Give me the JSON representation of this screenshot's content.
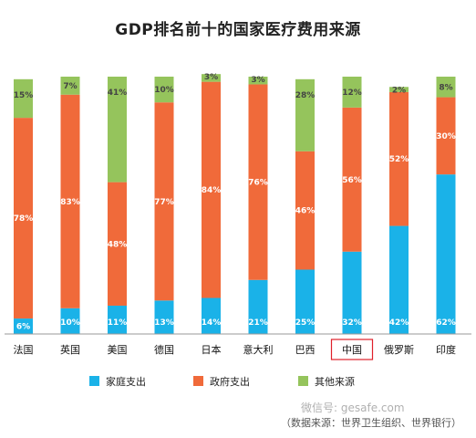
{
  "chart_data": {
    "type": "bar",
    "stacked": true,
    "percent": true,
    "title": "GDP排名前十的国家医疗费用来源",
    "categories": [
      "法国",
      "英国",
      "美国",
      "德国",
      "日本",
      "意大利",
      "巴西",
      "中国",
      "俄罗斯",
      "印度"
    ],
    "highlighted_category": "中国",
    "series": [
      {
        "name": "家庭支出",
        "color": "#1ab2e8",
        "values": [
          6,
          10,
          11,
          13,
          14,
          21,
          25,
          32,
          42,
          62
        ]
      },
      {
        "name": "政府支出",
        "color": "#f06a3a",
        "values": [
          78,
          83,
          48,
          77,
          84,
          76,
          46,
          56,
          52,
          30
        ]
      },
      {
        "name": "其他来源",
        "color": "#95c45c",
        "values": [
          15,
          7,
          41,
          10,
          3,
          3,
          28,
          12,
          2,
          8
        ]
      }
    ],
    "value_suffix": "%",
    "legend_position": "bottom",
    "grid": false
  },
  "watermark": "微信号: gesafe.com",
  "source_note": "（数据来源：世界卫生组织、世界银行）"
}
